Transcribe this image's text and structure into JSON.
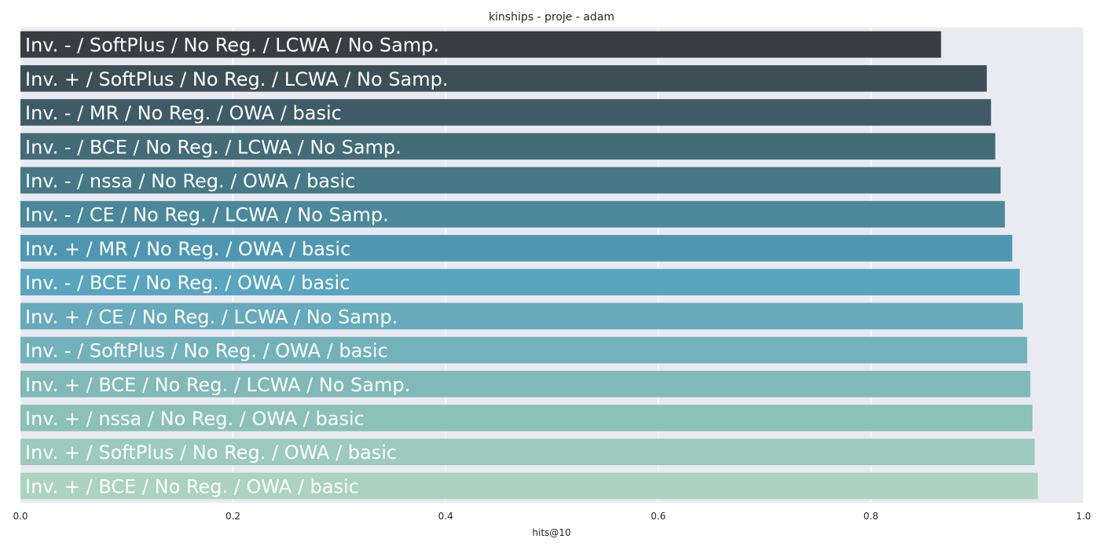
{
  "chart_data": {
    "type": "bar",
    "orientation": "horizontal",
    "title": "kinships - proje - adam",
    "xlabel": "hits@10",
    "ylabel": "",
    "xlim": [
      0,
      1.0
    ],
    "xticks": [
      "0.0",
      "0.2",
      "0.4",
      "0.6",
      "0.8",
      "1.0"
    ],
    "grid": true,
    "categories": [
      "Inv. - / SoftPlus / No Reg. / LCWA / No Samp.",
      "Inv. + / SoftPlus / No Reg. / LCWA / No Samp.",
      "Inv. - / MR / No Reg. / OWA / basic",
      "Inv. - / BCE / No Reg. / LCWA / No Samp.",
      "Inv. - / nssa / No Reg. / OWA / basic",
      "Inv. - / CE / No Reg. / LCWA / No Samp.",
      "Inv. + / MR / No Reg. / OWA / basic",
      "Inv. - / BCE / No Reg. / OWA / basic",
      "Inv. + / CE / No Reg. / LCWA / No Samp.",
      "Inv. - / SoftPlus / No Reg. / OWA / basic",
      "Inv. + / BCE / No Reg. / LCWA / No Samp.",
      "Inv. + / nssa / No Reg. / OWA / basic",
      "Inv. + / SoftPlus / No Reg. / OWA / basic",
      "Inv. + / BCE / No Reg. / OWA / basic"
    ],
    "values": [
      0.866,
      0.909,
      0.913,
      0.917,
      0.922,
      0.926,
      0.933,
      0.94,
      0.943,
      0.947,
      0.95,
      0.952,
      0.954,
      0.957
    ],
    "colors": [
      "#373e43",
      "#3c4f57",
      "#3f5c66",
      "#436b78",
      "#467886",
      "#4a889a",
      "#4f97b0",
      "#59a4bf",
      "#66aabb",
      "#73b2ba",
      "#80b9b8",
      "#8cc1b9",
      "#9ccabc",
      "#abd3bd"
    ]
  }
}
